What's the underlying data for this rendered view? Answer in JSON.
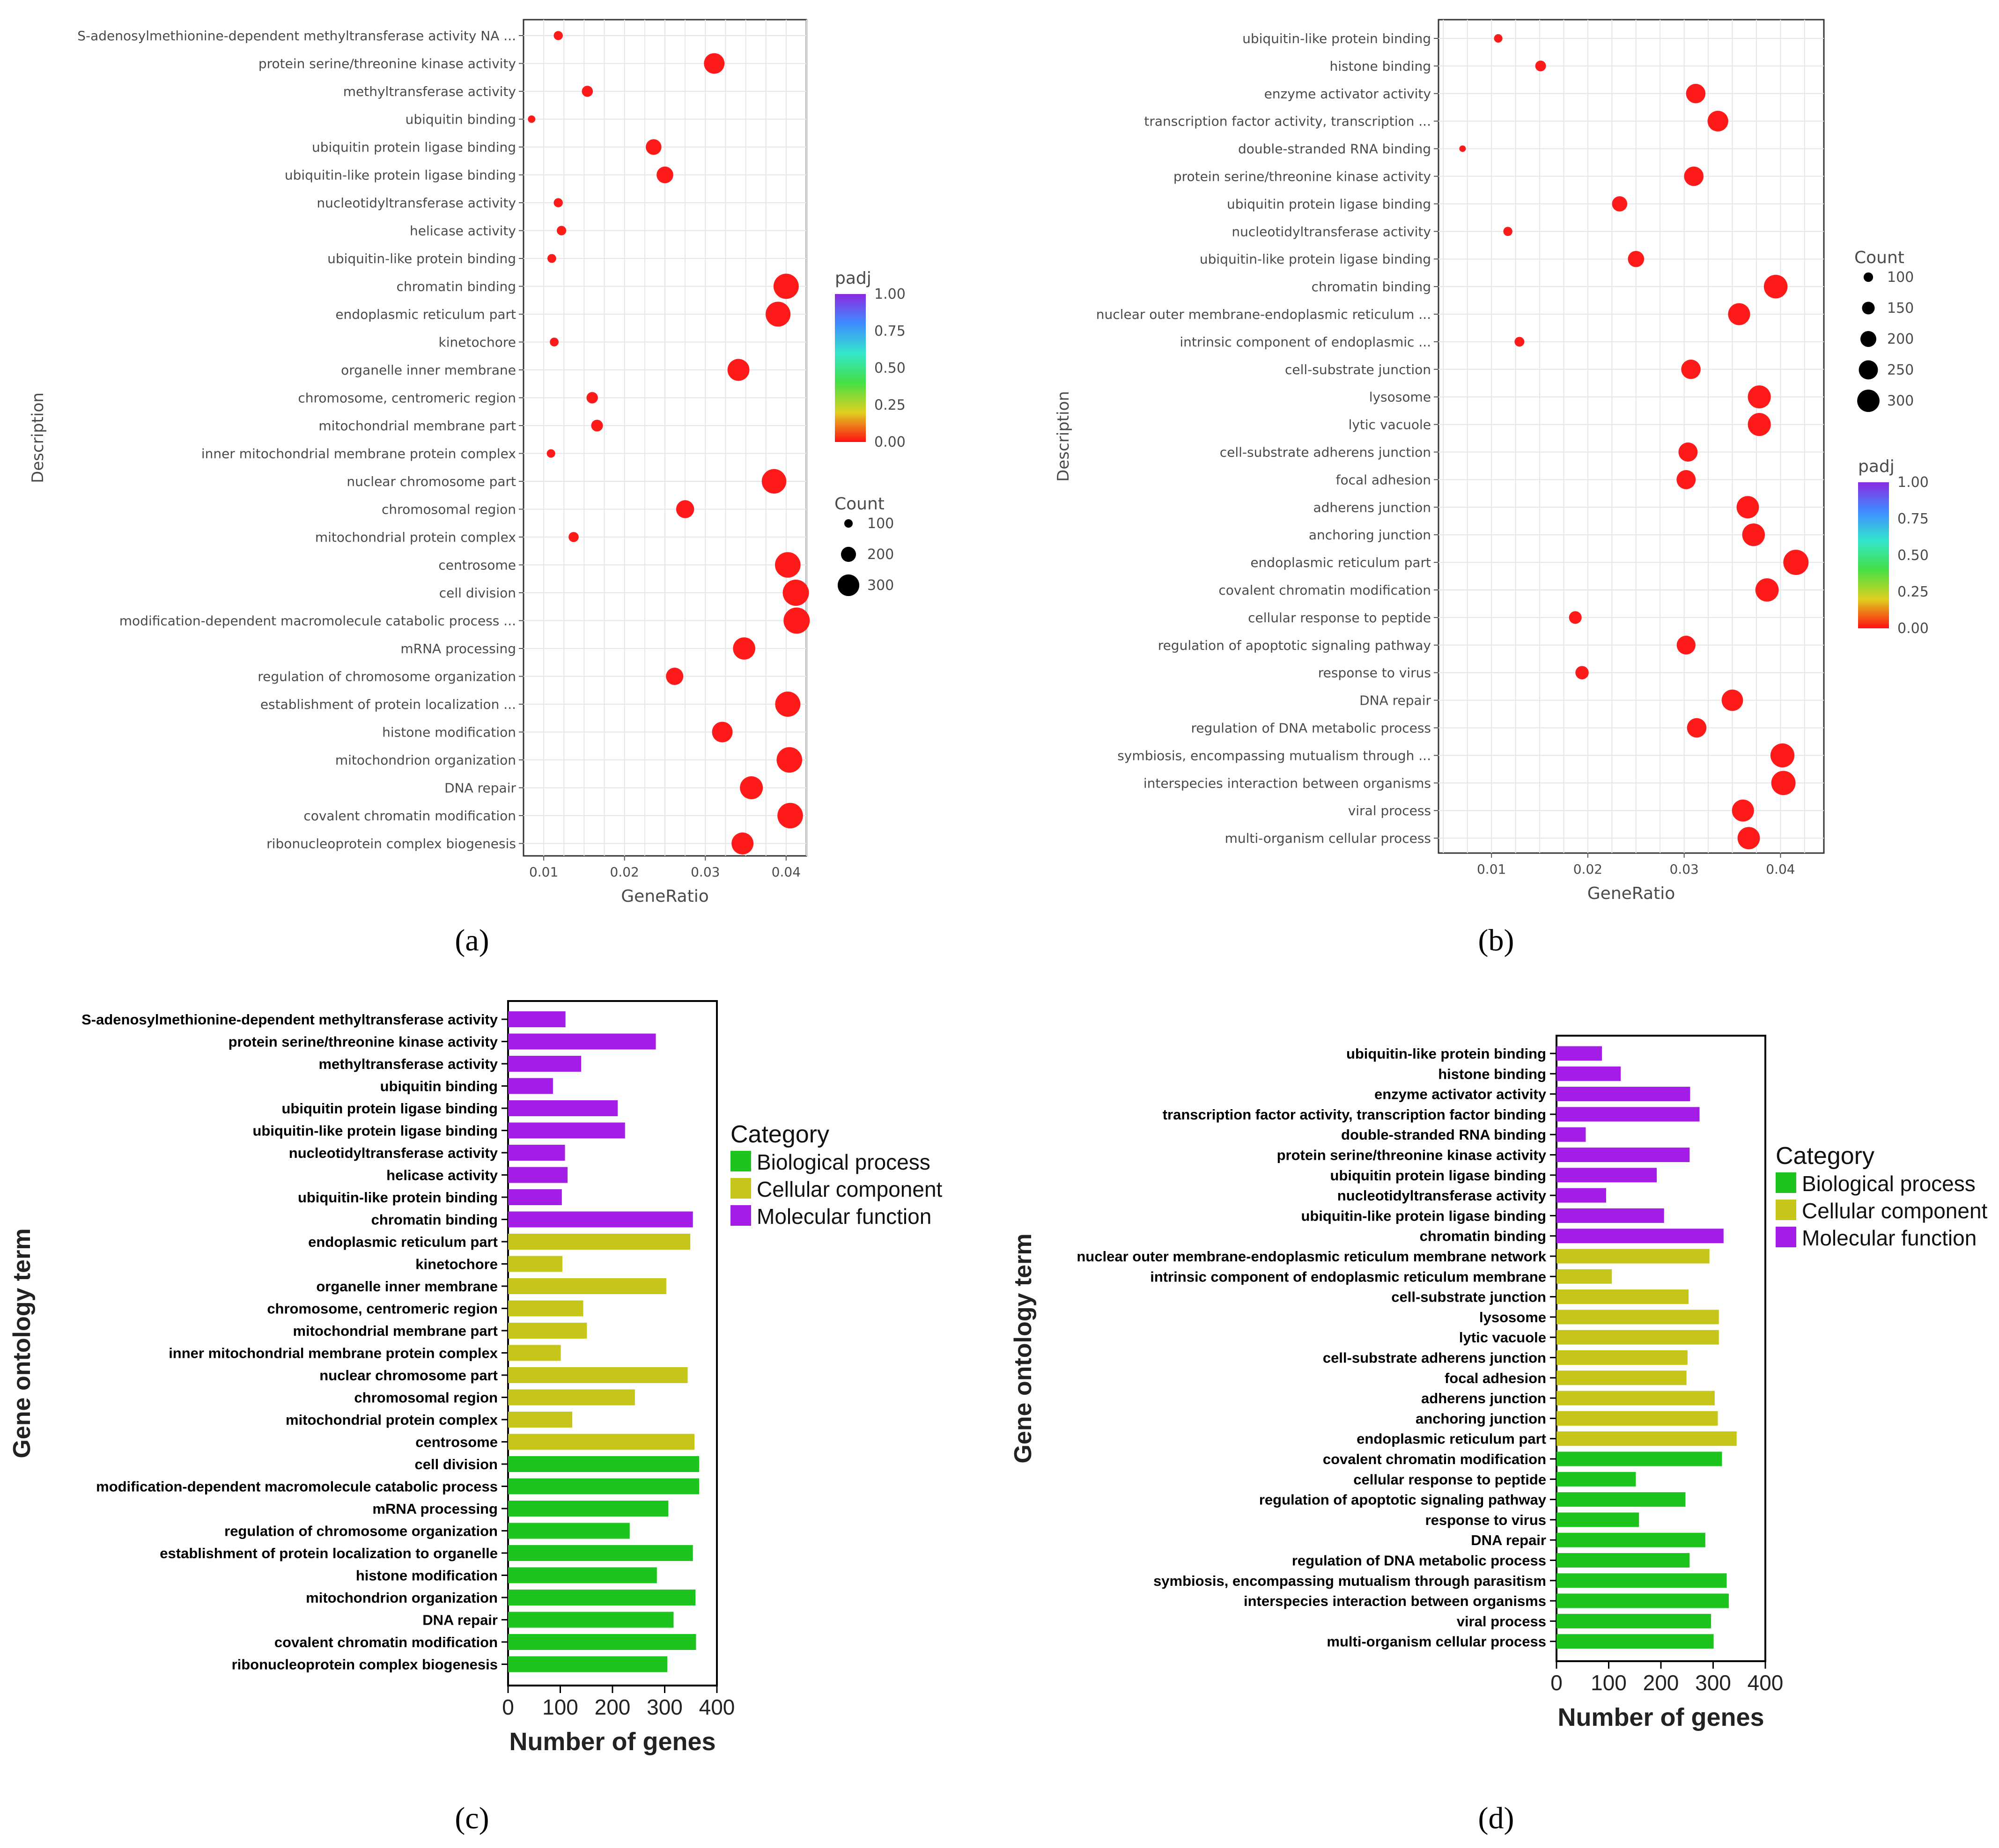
{
  "chart_data": [
    {
      "panel": "(a)",
      "type": "scatter",
      "xlabel": "GeneRatio",
      "ylabel": "Description",
      "xlim": [
        0.0075,
        0.0425
      ],
      "xticks": [
        "0.01",
        "0.02",
        "0.03",
        "0.04"
      ],
      "xtick_values": [
        0.01,
        0.02,
        0.03,
        0.04
      ],
      "grid": true,
      "color_legend": {
        "title": "padj",
        "ticks": [
          "1.00",
          "0.75",
          "0.50",
          "0.25",
          "0.00"
        ]
      },
      "size_legend": {
        "title": "Count",
        "ticks": [
          "100",
          "200",
          "300"
        ],
        "values": [
          100,
          200,
          300
        ]
      },
      "terms": [
        "S-adenosylmethionine-dependent methyltransferase activity NA ...",
        "protein serine/threonine kinase activity",
        "methyltransferase activity",
        "ubiquitin binding",
        "ubiquitin protein ligase binding",
        "ubiquitin-like protein ligase binding",
        "nucleotidyltransferase activity",
        "helicase activity",
        "ubiquitin-like protein binding",
        "chromatin binding",
        "endoplasmic reticulum part",
        "kinetochore",
        "organelle inner membrane",
        "chromosome, centromeric region",
        "mitochondrial membrane part",
        "inner mitochondrial membrane protein complex",
        "nuclear chromosome part",
        "chromosomal region",
        "mitochondrial protein complex",
        "centrosome",
        "cell division",
        "modification-dependent macromolecule catabolic process ...",
        "mRNA processing",
        "regulation of chromosome organization",
        "establishment of protein localization ...",
        "histone modification",
        "mitochondrion organization",
        "DNA repair",
        "covalent chromatin modification",
        "ribonucleoprotein complex biogenesis"
      ],
      "gene_ratio": [
        0.0118,
        0.0311,
        0.0154,
        0.0085,
        0.0236,
        0.025,
        0.0118,
        0.0122,
        0.011,
        0.04,
        0.039,
        0.0113,
        0.0341,
        0.016,
        0.0166,
        0.0109,
        0.0385,
        0.0275,
        0.0137,
        0.0402,
        0.0412,
        0.0413,
        0.0348,
        0.0262,
        0.0402,
        0.0321,
        0.0404,
        0.0357,
        0.0405,
        0.0346
      ],
      "count": [
        110,
        285,
        140,
        85,
        210,
        225,
        110,
        115,
        105,
        355,
        350,
        105,
        305,
        145,
        150,
        100,
        345,
        245,
        125,
        360,
        370,
        370,
        310,
        235,
        355,
        285,
        360,
        320,
        360,
        305
      ],
      "padj": [
        0,
        0,
        0,
        0,
        0,
        0,
        0,
        0,
        0,
        0,
        0,
        0,
        0,
        0,
        0,
        0,
        0,
        0,
        0,
        0,
        0,
        0,
        0,
        0,
        0,
        0,
        0,
        0,
        0,
        0
      ]
    },
    {
      "panel": "(b)",
      "type": "scatter",
      "xlabel": "GeneRatio",
      "ylabel": "Description",
      "xlim": [
        0.0045,
        0.0445
      ],
      "xticks": [
        "0.01",
        "0.02",
        "0.03",
        "0.04"
      ],
      "xtick_values": [
        0.01,
        0.02,
        0.03,
        0.04
      ],
      "grid": true,
      "color_legend": {
        "title": "padj",
        "ticks": [
          "1.00",
          "0.75",
          "0.50",
          "0.25",
          "0.00"
        ]
      },
      "size_legend": {
        "title": "Count",
        "ticks": [
          "100",
          "150",
          "200",
          "250",
          "300"
        ],
        "values": [
          100,
          150,
          200,
          250,
          300
        ]
      },
      "terms": [
        "ubiquitin-like protein binding",
        "histone binding",
        "enzyme activator activity",
        "transcription factor activity, transcription ...",
        "double-stranded RNA binding",
        "protein serine/threonine kinase activity",
        "ubiquitin protein ligase binding",
        "nucleotidyltransferase activity",
        "ubiquitin-like protein ligase binding",
        "chromatin binding",
        "nuclear outer membrane-endoplasmic reticulum ...",
        "intrinsic component of endoplasmic ...",
        "cell-substrate junction",
        "lysosome",
        "lytic vacuole",
        "cell-substrate adherens junction",
        "focal adhesion",
        "adherens junction",
        "anchoring junction",
        "endoplasmic reticulum part",
        "covalent chromatin modification",
        "cellular response to peptide",
        "regulation of apoptotic signaling pathway",
        "response to virus",
        "DNA repair",
        "regulation of DNA metabolic process",
        "symbiosis, encompassing mutualism through ...",
        "interspecies interaction between organisms",
        "viral process",
        "multi-organism cellular process"
      ],
      "gene_ratio": [
        0.0107,
        0.0151,
        0.0312,
        0.0335,
        0.007,
        0.031,
        0.0233,
        0.0117,
        0.025,
        0.0395,
        0.0357,
        0.0129,
        0.0307,
        0.0378,
        0.0378,
        0.0304,
        0.0302,
        0.0366,
        0.0372,
        0.0416,
        0.0386,
        0.0187,
        0.0302,
        0.0194,
        0.035,
        0.0313,
        0.0402,
        0.0403,
        0.0361,
        0.0367
      ],
      "count": [
        85,
        120,
        255,
        275,
        55,
        255,
        190,
        95,
        205,
        320,
        295,
        105,
        255,
        310,
        310,
        250,
        250,
        300,
        305,
        345,
        315,
        150,
        245,
        160,
        285,
        255,
        325,
        330,
        295,
        300
      ],
      "padj": [
        0,
        0,
        0,
        0,
        0,
        0,
        0,
        0,
        0,
        0,
        0,
        0,
        0,
        0,
        0,
        0,
        0,
        0,
        0,
        0,
        0,
        0,
        0,
        0,
        0,
        0,
        0,
        0,
        0,
        0
      ]
    },
    {
      "panel": "(c)",
      "type": "bar",
      "orientation": "horizontal",
      "xlabel": "Number of genes",
      "ylabel": "Gene ontology term",
      "xlim": [
        0,
        400
      ],
      "xticks": [
        "0",
        "100",
        "200",
        "300",
        "400"
      ],
      "legend_title": "Category",
      "legend": [
        {
          "name": "Biological process",
          "color": "#1ec41e"
        },
        {
          "name": "Cellular component",
          "color": "#c6c61a"
        },
        {
          "name": "Molecular function",
          "color": "#a41de6"
        }
      ],
      "categories": [
        "S-adenosylmethionine-dependent methyltransferase activity",
        "protein serine/threonine kinase activity",
        "methyltransferase activity",
        "ubiquitin binding",
        "ubiquitin protein ligase binding",
        "ubiquitin-like protein ligase binding",
        "nucleotidyltransferase activity",
        "helicase activity",
        "ubiquitin-like protein binding",
        "chromatin binding",
        "endoplasmic reticulum part",
        "kinetochore",
        "organelle inner membrane",
        "chromosome, centromeric region",
        "mitochondrial membrane part",
        "inner mitochondrial membrane protein complex",
        "nuclear chromosome part",
        "chromosomal region",
        "mitochondrial protein complex",
        "centrosome",
        "cell division",
        "modification-dependent macromolecule catabolic process",
        "mRNA processing",
        "regulation of chromosome organization",
        "establishment of protein localization to organelle",
        "histone modification",
        "mitochondrion organization",
        "DNA repair",
        "covalent chromatin modification",
        "ribonucleoprotein complex biogenesis"
      ],
      "values": [
        110,
        283,
        140,
        86,
        210,
        224,
        109,
        114,
        103,
        354,
        349,
        104,
        303,
        144,
        151,
        101,
        344,
        243,
        123,
        357,
        366,
        366,
        307,
        233,
        354,
        285,
        359,
        317,
        360,
        305
      ],
      "category_of_bar": [
        "mf",
        "mf",
        "mf",
        "mf",
        "mf",
        "mf",
        "mf",
        "mf",
        "mf",
        "mf",
        "cc",
        "cc",
        "cc",
        "cc",
        "cc",
        "cc",
        "cc",
        "cc",
        "cc",
        "cc",
        "bp",
        "bp",
        "bp",
        "bp",
        "bp",
        "bp",
        "bp",
        "bp",
        "bp",
        "bp"
      ]
    },
    {
      "panel": "(d)",
      "type": "bar",
      "orientation": "horizontal",
      "xlabel": "Number of genes",
      "ylabel": "Gene ontology term",
      "xlim": [
        0,
        400
      ],
      "xticks": [
        "0",
        "100",
        "200",
        "300",
        "400"
      ],
      "legend_title": "Category",
      "legend": [
        {
          "name": "Biological process",
          "color": "#1ec41e"
        },
        {
          "name": "Cellular component",
          "color": "#c6c61a"
        },
        {
          "name": "Molecular function",
          "color": "#a41de6"
        }
      ],
      "categories": [
        "ubiquitin-like protein binding",
        "histone binding",
        "enzyme activator activity",
        "transcription factor activity, transcription factor binding",
        "double-stranded RNA binding",
        "protein serine/threonine kinase activity",
        "ubiquitin protein ligase binding",
        "nucleotidyltransferase activity",
        "ubiquitin-like protein ligase binding",
        "chromatin binding",
        "nuclear outer membrane-endoplasmic reticulum membrane network",
        "intrinsic component of endoplasmic reticulum membrane",
        "cell-substrate junction",
        "lysosome",
        "lytic vacuole",
        "cell-substrate adherens junction",
        "focal adhesion",
        "adherens junction",
        "anchoring junction",
        "endoplasmic reticulum part",
        "covalent chromatin modification",
        "cellular response to peptide",
        "regulation of apoptotic signaling pathway",
        "response to virus",
        "DNA repair",
        "regulation of DNA metabolic process",
        "symbiosis, encompassing mutualism through parasitism",
        "interspecies interaction between organisms",
        "viral process",
        "multi-organism cellular process"
      ],
      "values": [
        87,
        123,
        256,
        274,
        56,
        255,
        192,
        95,
        206,
        320,
        293,
        106,
        253,
        311,
        311,
        251,
        249,
        303,
        309,
        345,
        317,
        152,
        247,
        158,
        285,
        255,
        326,
        330,
        296,
        301
      ],
      "category_of_bar": [
        "mf",
        "mf",
        "mf",
        "mf",
        "mf",
        "mf",
        "mf",
        "mf",
        "mf",
        "mf",
        "cc",
        "cc",
        "cc",
        "cc",
        "cc",
        "cc",
        "cc",
        "cc",
        "cc",
        "cc",
        "bp",
        "bp",
        "bp",
        "bp",
        "bp",
        "bp",
        "bp",
        "bp",
        "bp",
        "bp"
      ]
    }
  ],
  "captions": [
    "(a)",
    "(b)",
    "(c)",
    "(d)"
  ],
  "colors": {
    "dot": "#ff1a1a",
    "panel_bg": "#ffffff",
    "gridline": "#e6e6e6",
    "bp": "#1ec41e",
    "cc": "#c6c61a",
    "mf": "#a41de6"
  }
}
